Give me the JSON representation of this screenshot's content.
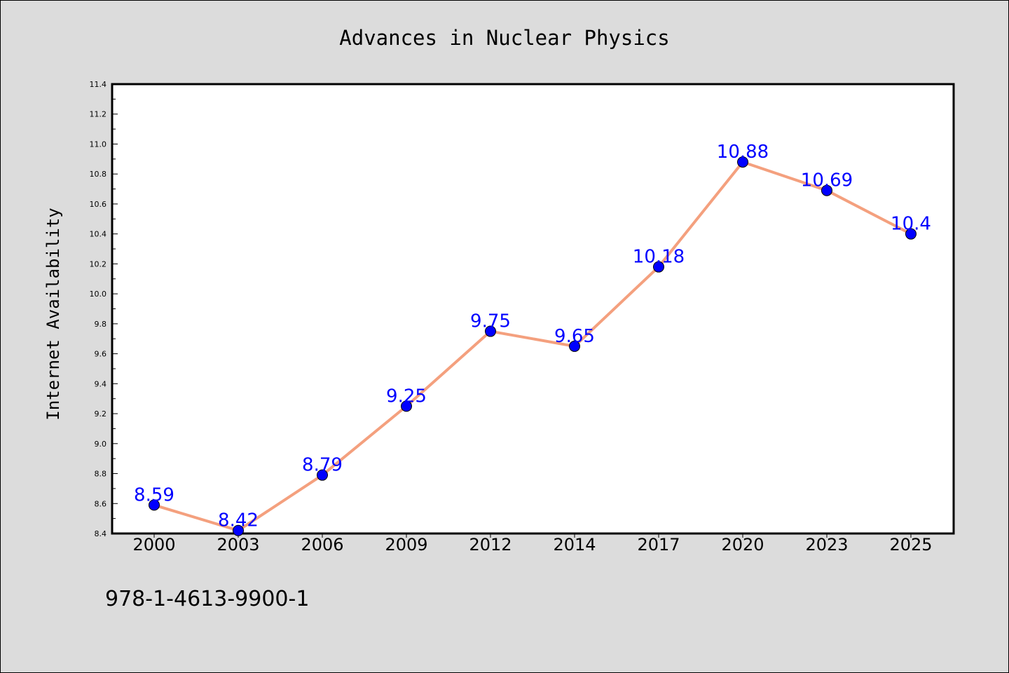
{
  "isbn": "978-1-4613-9900-1",
  "chart_data": {
    "type": "line",
    "title": "Advances in Nuclear Physics",
    "xlabel": "",
    "ylabel": "Internet Availability",
    "categories": [
      "2000",
      "2003",
      "2006",
      "2009",
      "2012",
      "2014",
      "2017",
      "2020",
      "2023",
      "2025"
    ],
    "series": [
      {
        "values": [
          8.59,
          8.42,
          8.79,
          9.25,
          9.75,
          9.65,
          10.18,
          10.88,
          10.69,
          10.4
        ],
        "labels": [
          "8.59",
          "8.42",
          "8.79",
          "9.25",
          "9.75",
          "9.65",
          "10.18",
          "10.88",
          "10.69",
          "10.4"
        ],
        "line_color": "#f4a07e",
        "marker_color": "#0000ff"
      }
    ],
    "ylim": [
      8.4,
      11.4
    ],
    "yticks": [
      "8.4",
      "8.6",
      "8.8",
      "9.0",
      "9.2",
      "9.4",
      "9.6",
      "9.8",
      "10.0",
      "10.2",
      "10.4",
      "10.6",
      "10.8",
      "11.0",
      "11.2",
      "11.4"
    ],
    "label_color": "#0000ff",
    "grid": false,
    "legend": "none"
  }
}
